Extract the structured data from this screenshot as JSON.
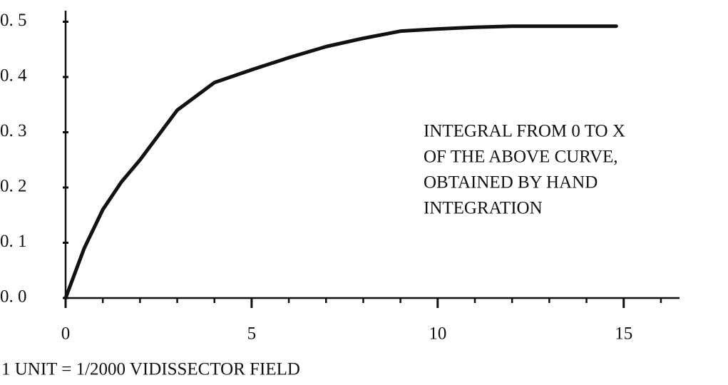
{
  "chart_data": {
    "type": "line",
    "x": [
      0,
      0.5,
      1,
      1.5,
      2,
      3,
      4,
      5,
      6,
      7,
      8,
      9,
      10,
      11,
      12,
      13,
      14,
      14.8
    ],
    "series": [
      {
        "color": "#111111",
        "values": [
          0,
          0.09,
          0.16,
          0.21,
          0.25,
          0.34,
          0.39,
          0.413,
          0.435,
          0.455,
          0.47,
          0.483,
          0.487,
          0.49,
          0.492,
          0.492,
          0.492,
          0.492
        ]
      }
    ],
    "xlim": [
      0,
      16.5
    ],
    "ylim": [
      0,
      0.52
    ],
    "xticks": [
      0,
      5,
      10,
      15
    ],
    "xminor_ticks": [
      1,
      2,
      3,
      4,
      6,
      7,
      8,
      9,
      11,
      12,
      13,
      14,
      16
    ],
    "yticks": [
      {
        "value": 0,
        "label": "0. 0"
      },
      {
        "value": 0.1,
        "label": "0. 1"
      },
      {
        "value": 0.2,
        "label": "0. 2"
      },
      {
        "value": 0.3,
        "label": "0. 3"
      },
      {
        "value": 0.4,
        "label": "0. 4"
      },
      {
        "value": 0.5,
        "label": "0. 5"
      }
    ],
    "annotation": [
      "INTEGRAL FROM 0 TO X",
      "OF THE ABOVE CURVE,",
      "OBTAINED BY HAND",
      "INTEGRATION"
    ],
    "x_label": "1 UNIT = 1/2000 VIDISSECTOR FIELD",
    "grid": false
  }
}
